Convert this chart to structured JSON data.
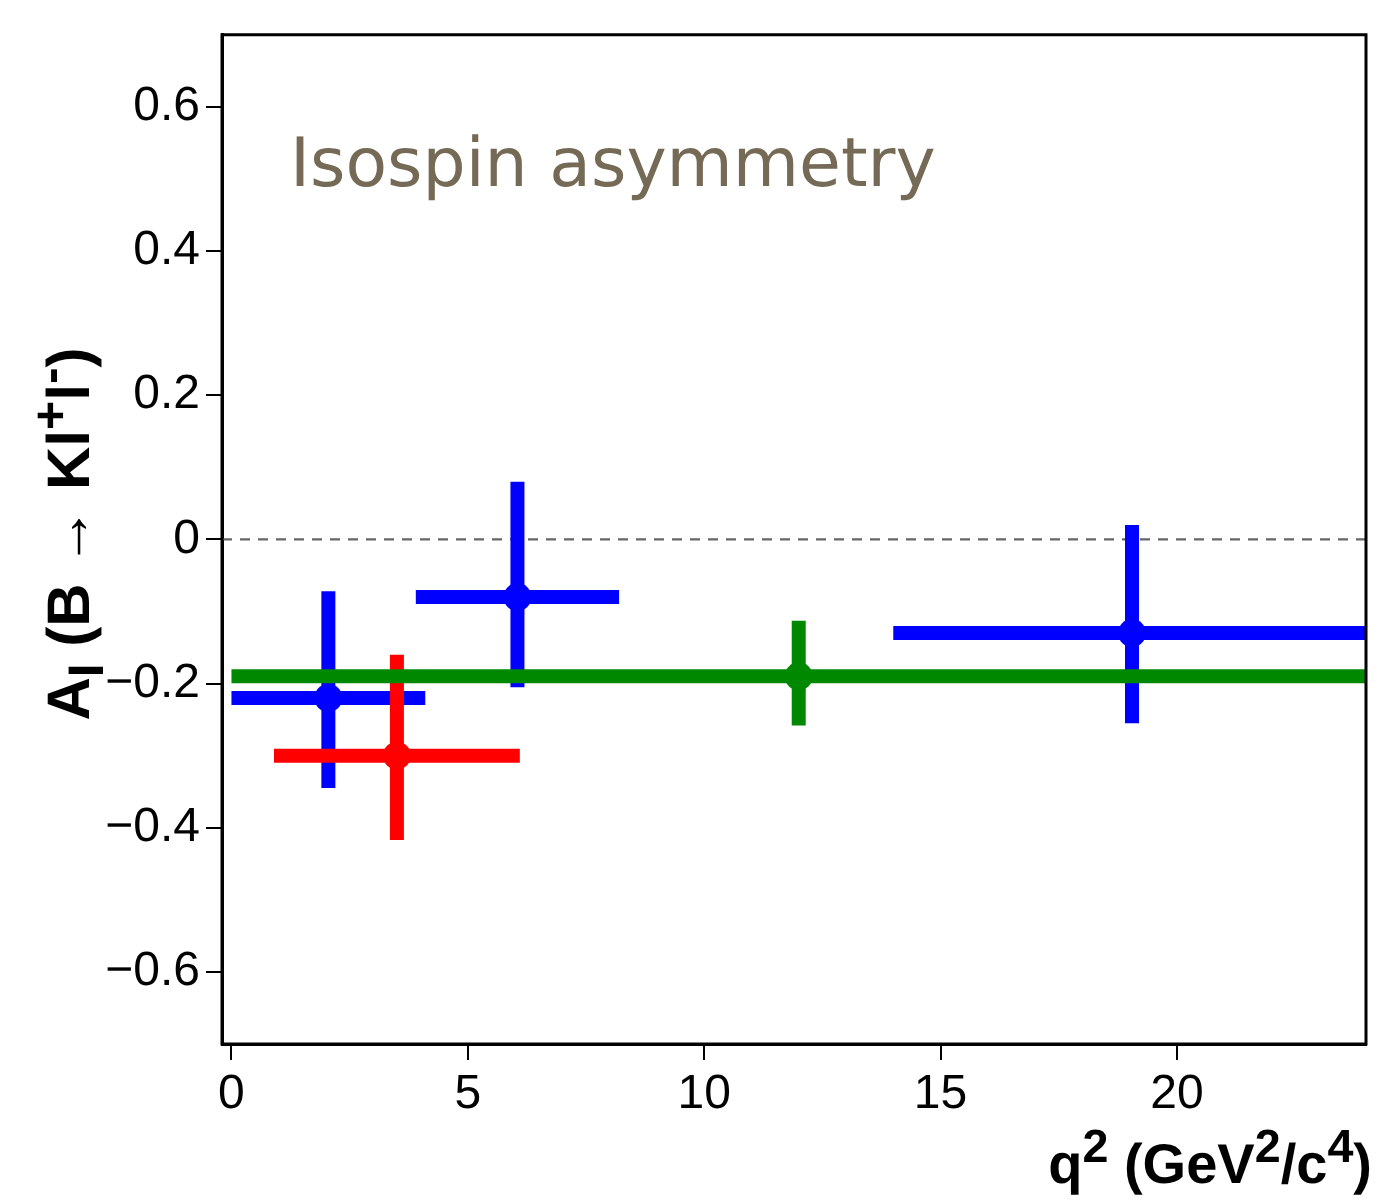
{
  "chart_data": {
    "type": "scatter",
    "xlabel": "q$^{2}$ (GeV$^{2}$/c$^{4}$)",
    "ylabel": "A$_{I}$ (B → Kl$^{+}$l$^{-}$)",
    "annotations": [
      "Isospin asymmetry"
    ],
    "xlim": [
      -0.2,
      24
    ],
    "xticks": [
      0,
      5,
      10,
      15,
      20
    ],
    "ylim": [
      -0.7,
      0.7
    ],
    "yticks": [
      {
        "value": -0.6,
        "label": "−0.6"
      },
      {
        "value": -0.4,
        "label": "−0.4"
      },
      {
        "value": -0.2,
        "label": "−0.2"
      },
      0,
      0.2,
      0.4,
      0.6
    ],
    "grid": false,
    "legend": false,
    "marker": "circle",
    "ref_lines": [
      {
        "axis": "y",
        "value": 0,
        "color": "#666666",
        "line_style": "dashed"
      }
    ],
    "series": [
      {
        "color": "#0000ff",
        "x": [
          2.05,
          6.05,
          19.05
        ],
        "values": [
          -0.22,
          -0.08,
          -0.13
        ],
        "errors": [
          [
            -0.345,
            -0.072
          ],
          [
            -0.205,
            0.08
          ],
          [
            -0.255,
            0.02
          ]
        ],
        "xerrors": [
          [
            0,
            4.1
          ],
          [
            3.9,
            8.2
          ],
          [
            14.0,
            24
          ]
        ]
      },
      {
        "color": "#ff0000",
        "x": [
          3.5
        ],
        "values": [
          -0.3
        ],
        "errors": [
          [
            -0.417,
            -0.16
          ]
        ],
        "xerrors": [
          [
            0.9,
            6.1
          ]
        ]
      },
      {
        "color": "#008800",
        "x": [
          12.0
        ],
        "values": [
          -0.19
        ],
        "errors": [
          [
            -0.258,
            -0.113
          ]
        ],
        "xerrors": [
          [
            0,
            24
          ]
        ]
      }
    ]
  }
}
